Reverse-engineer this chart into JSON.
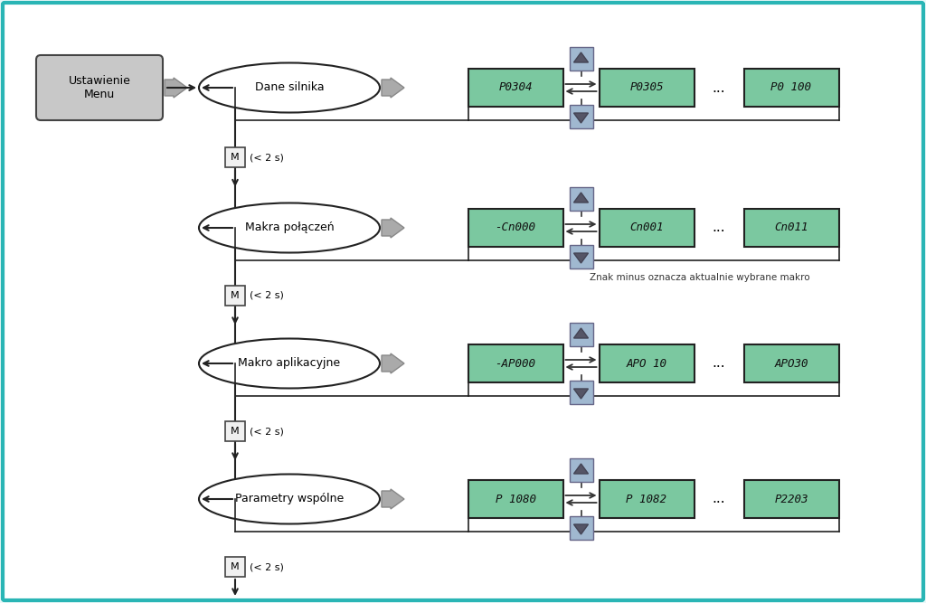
{
  "bg_color": "#ffffff",
  "border_color": "#2ab5b5",
  "fig_bg": "#e8f8f8",
  "oval_fill": "#ffffff",
  "oval_edge": "#222222",
  "green_fill": "#7bc8a0",
  "green_edge": "#222222",
  "gray_box_fill": "#c8c8c8",
  "gray_box_edge": "#888888",
  "blue_btn_fill": "#a0b8d0",
  "blue_btn_edge": "#666688",
  "arrow_color": "#555555",
  "arrow_head_fill": "#888888",
  "menu_fill": "#c8c8c8",
  "menu_edge": "#444444",
  "rows": [
    {
      "oval_label": "Dane silnika",
      "boxes": [
        "P0304",
        "P0305",
        "P0 100"
      ],
      "note": ""
    },
    {
      "oval_label": "Makra połączeń",
      "boxes": [
        "-Cn000",
        "Cn001",
        "Cn011"
      ],
      "note": "Znak minus oznacza aktualnie wybrane makro"
    },
    {
      "oval_label": "Makro aplikacyjne",
      "boxes": [
        "-AP000",
        "APO 10",
        "APO30"
      ],
      "note": ""
    },
    {
      "oval_label": "Parametry wspólne",
      "boxes": [
        "P 1080",
        "P 1082",
        "P2203"
      ],
      "note": ""
    }
  ],
  "menu_label": "Ustawienie\nMenu",
  "m_label": "M",
  "m_note": "< 2 s)",
  "font_mono": "monospace",
  "font_main": "sans-serif"
}
